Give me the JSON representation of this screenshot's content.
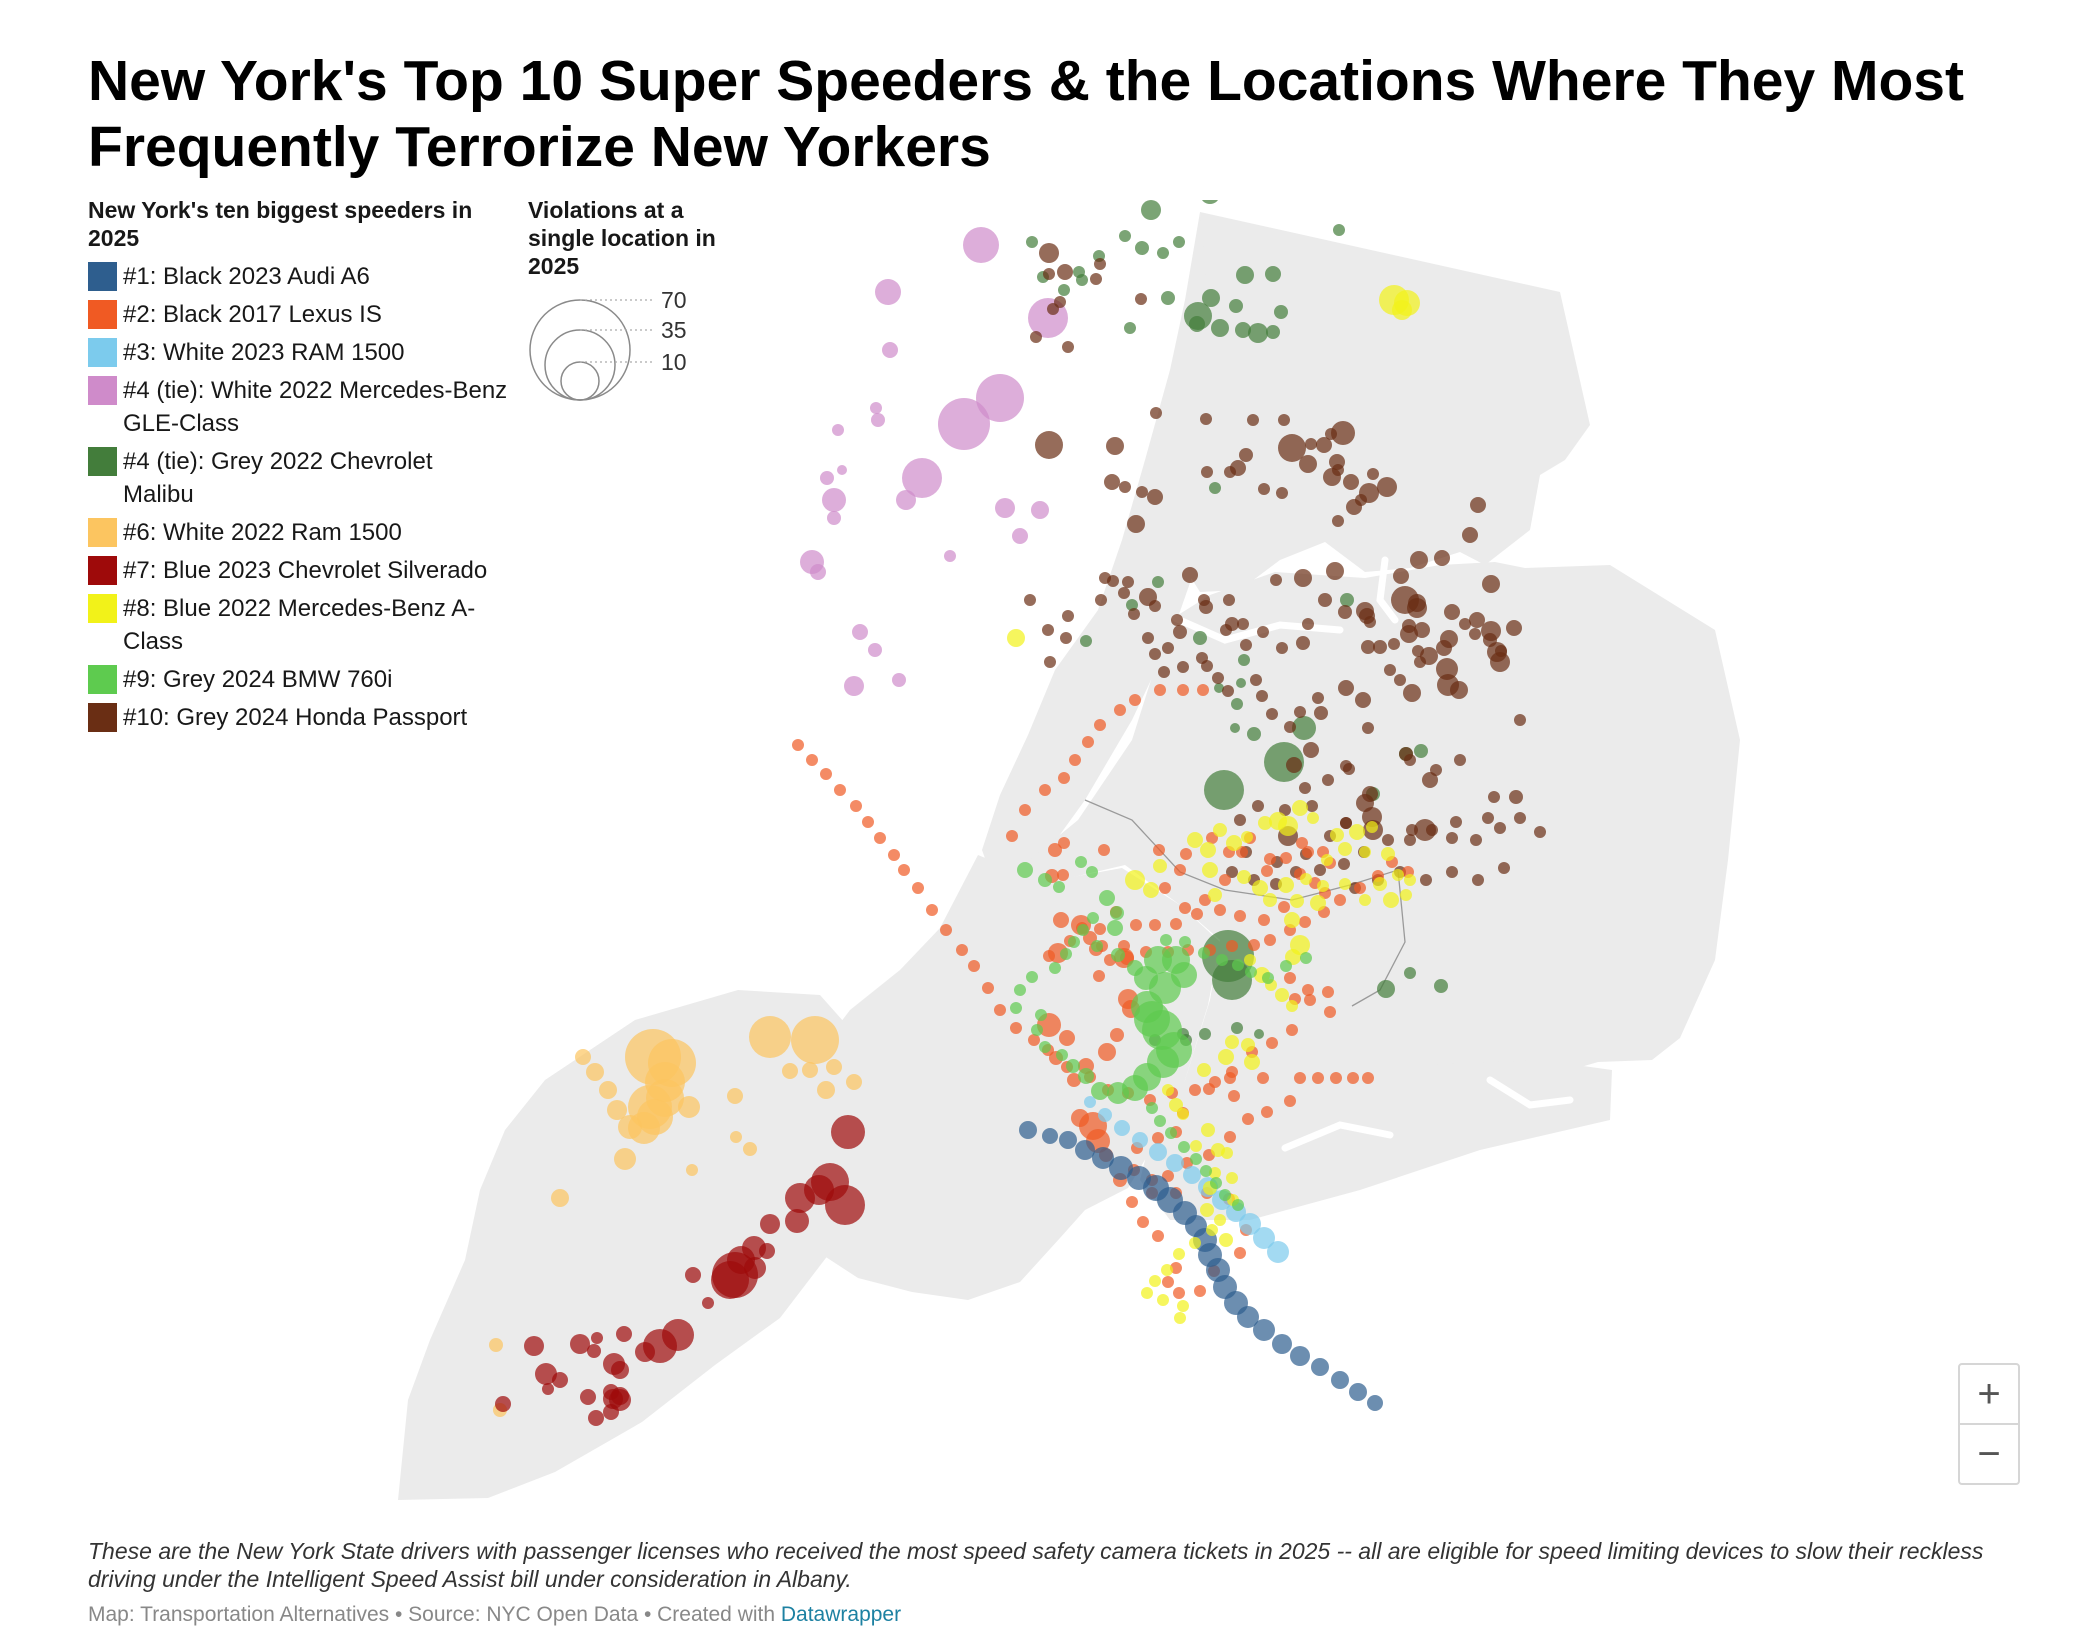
{
  "title": "New York's Top 10 Super Speeders & the Locations Where They Most Frequently Terrorize New Yorkers",
  "legend": {
    "title": "New York's ten biggest speeders in 2025",
    "items": [
      {
        "label": "#1: Black 2023 Audi A6",
        "color": "#2e5e8e"
      },
      {
        "label": "#2: Black 2017 Lexus IS",
        "color": "#f05a23"
      },
      {
        "label": "#3: White 2023 RAM 1500",
        "color": "#7ccbed"
      },
      {
        "label": "#4 (tie): White 2022 Mercedes-Benz GLE-Class",
        "color": "#cf8bca"
      },
      {
        "label": "#4 (tie): Grey 2022 Chevrolet Malibu",
        "color": "#437d3b"
      },
      {
        "label": "#6: White 2022 Ram 1500",
        "color": "#fcc560"
      },
      {
        "label": "#7: Blue 2023 Chevrolet Silverado",
        "color": "#9e0a0a"
      },
      {
        "label": "#8: Blue 2022 Mercedes-Benz A-Class",
        "color": "#f2f219"
      },
      {
        "label": "#9: Grey 2024 BMW 760i",
        "color": "#5ecb4f"
      },
      {
        "label": "#10: Grey 2024 Honda Passport",
        "color": "#6a2e14"
      }
    ]
  },
  "size_legend": {
    "title": "Violations at a single location in 2025",
    "values": [
      "70",
      "35",
      "10"
    ]
  },
  "zoom": {
    "in_label": "+",
    "out_label": "−"
  },
  "notes": "These are the New York State drivers with passenger licenses who received the most speed safety camera tickets in 2025 -- all are eligible for speed limiting devices to slow their reckless driving under the Intelligent Speed Assist bill under consideration in Albany.",
  "footer": {
    "text": "Map: Transportation Alternatives • Source: NYC Open Data • Created with ",
    "link": "Datawrapper"
  }
}
